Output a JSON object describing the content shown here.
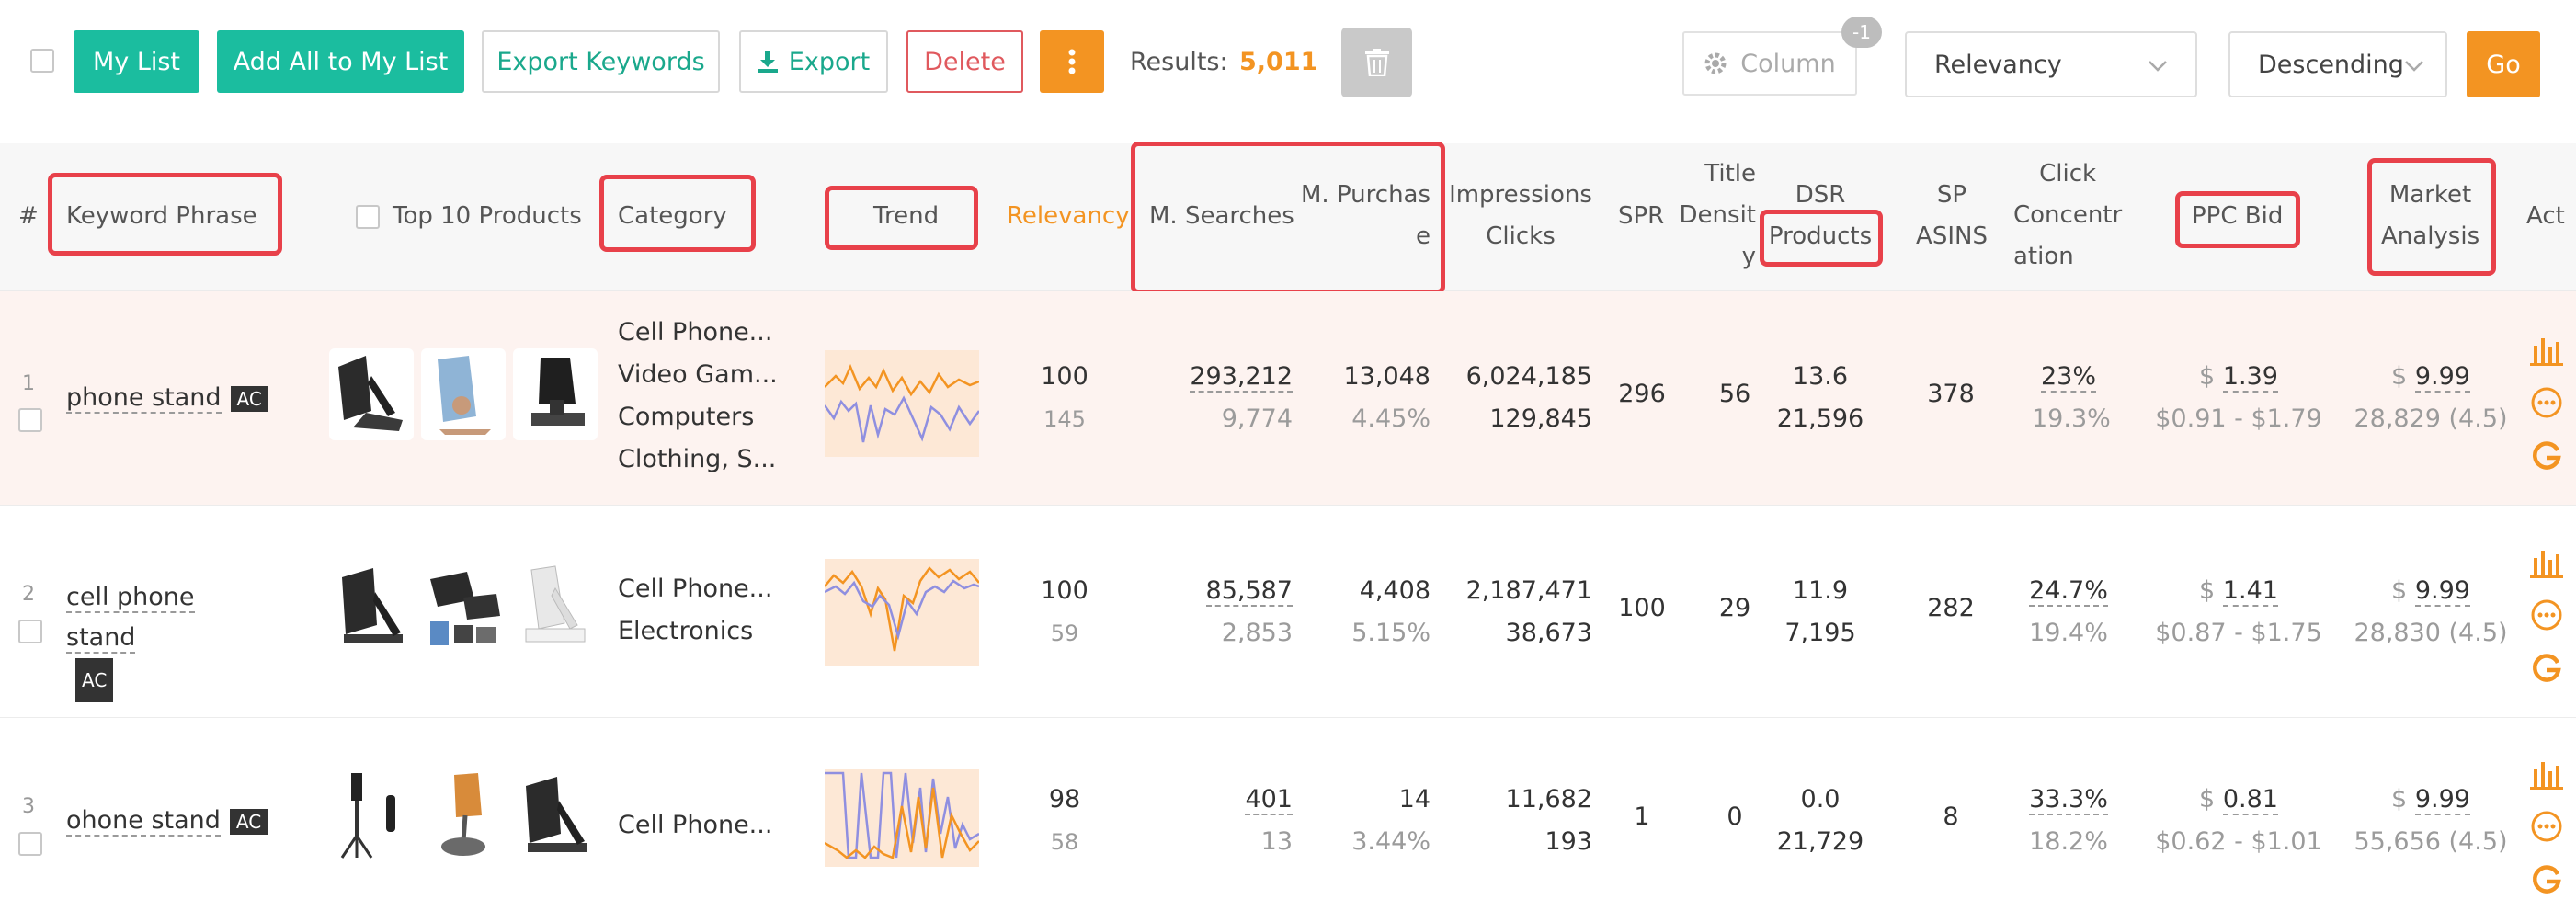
{
  "toolbar": {
    "my_list": "My List",
    "add_all": "Add All to My List",
    "export_keywords": "Export Keywords",
    "export": "Export",
    "delete": "Delete",
    "results_label": "Results:",
    "results_value": "5,011",
    "column": "Column",
    "column_badge": "-1",
    "sort_field": "Relevancy",
    "sort_order": "Descending",
    "go": "Go"
  },
  "headers": {
    "num": "#",
    "keyword": "Keyword Phrase",
    "top10": "Top 10 Products",
    "category": "Category",
    "trend": "Trend",
    "relevancy": "Relevancy",
    "m_searches": "M. Searches",
    "m_purchase_1": "M. Purchas",
    "m_purchase_2": "e",
    "impressions": "Impressions",
    "clicks": "Clicks",
    "spr": "SPR",
    "title_1": "Title",
    "title_2": "Densit",
    "title_3": "y",
    "dsr": "DSR",
    "products": "Products",
    "sp_1": "SP",
    "sp_2": "ASINS",
    "cc_1": "Click",
    "cc_2": "Concentr",
    "cc_3": "ation",
    "ppc": "PPC Bid",
    "ma_1": "Market",
    "ma_2": "Analysis",
    "act": "Act"
  },
  "rows": [
    {
      "num": "1",
      "keyword": "phone stand",
      "badge": "AC",
      "categories": [
        "Cell Phone...",
        "Video Gam...",
        "Computers",
        "Clothing, S..."
      ],
      "relevancy": "100",
      "relevancy_sub": "145",
      "searches": "293,212",
      "searches_sub": "9,774",
      "purchase": "13,048",
      "purchase_sub": "4.45%",
      "impressions": "6,024,185",
      "clicks": "129,845",
      "spr": "296",
      "title_density": "56",
      "dsr": "13.6",
      "products": "21,596",
      "sp_asins": "378",
      "click_conc": "23%",
      "click_conc_sub": "19.3%",
      "ppc_bid": "1.39",
      "ppc_range": "$0.91 - $1.79",
      "market": "9.99",
      "market_sub": "28,829 (4.5)"
    },
    {
      "num": "2",
      "keyword": "cell phone stand",
      "badge": "AC",
      "categories": [
        "Cell Phone...",
        "Electronics"
      ],
      "relevancy": "100",
      "relevancy_sub": "59",
      "searches": "85,587",
      "searches_sub": "2,853",
      "purchase": "4,408",
      "purchase_sub": "5.15%",
      "impressions": "2,187,471",
      "clicks": "38,673",
      "spr": "100",
      "title_density": "29",
      "dsr": "11.9",
      "products": "7,195",
      "sp_asins": "282",
      "click_conc": "24.7%",
      "click_conc_sub": "19.4%",
      "ppc_bid": "1.41",
      "ppc_range": "$0.87 - $1.75",
      "market": "9.99",
      "market_sub": "28,830 (4.5)"
    },
    {
      "num": "3",
      "keyword": "ohone stand",
      "badge": "AC",
      "categories": [
        "Cell Phone..."
      ],
      "relevancy": "98",
      "relevancy_sub": "58",
      "searches": "401",
      "searches_sub": "13",
      "purchase": "14",
      "purchase_sub": "3.44%",
      "impressions": "11,682",
      "clicks": "193",
      "spr": "1",
      "title_density": "0",
      "dsr": "0.0",
      "products": "21,729",
      "sp_asins": "8",
      "click_conc": "33.3%",
      "click_conc_sub": "18.2%",
      "ppc_bid": "0.81",
      "ppc_range": "$0.62 - $1.01",
      "market": "9.99",
      "market_sub": "55,656 (4.5)"
    }
  ],
  "currency": "$",
  "colors": {
    "green": "#1bbd9f",
    "orange": "#f39422",
    "red_highlight": "#e8414a",
    "row1_bg": "#fdf3f0"
  }
}
